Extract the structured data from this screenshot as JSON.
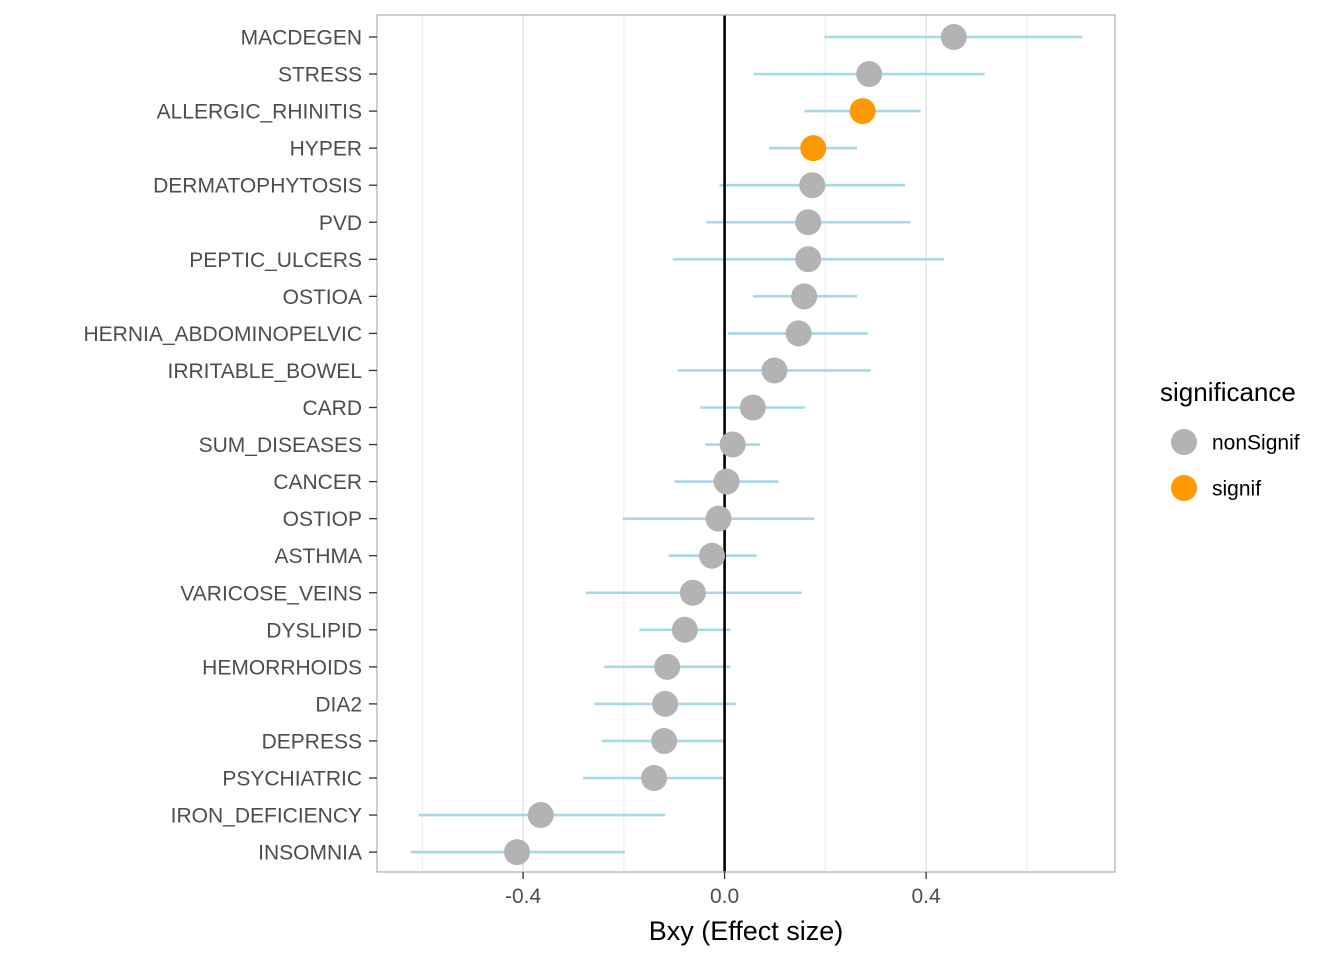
{
  "chart_data": {
    "type": "scatter",
    "subtype": "forest-plot",
    "xlabel": "Bxy (Effect size)",
    "ylabel": "",
    "xlim": [
      -0.69,
      0.775
    ],
    "xticks": [
      -0.4,
      0.0,
      0.4
    ],
    "xtick_labels": [
      "-0.4",
      "0.0",
      "0.4"
    ],
    "reference_line_x": 0,
    "grid": true,
    "legend": {
      "title": "significance",
      "position": "right",
      "entries": [
        {
          "label": "nonSignif",
          "color": "#b3b3b3"
        },
        {
          "label": "signif",
          "color": "#ff9900"
        }
      ]
    },
    "errorbar_color": "#a6d8ea",
    "points": [
      {
        "label": "MACDEGEN",
        "estimate": 0.455,
        "lower": 0.198,
        "upper": 0.71,
        "significance": "nonSignif"
      },
      {
        "label": "STRESS",
        "estimate": 0.287,
        "lower": 0.058,
        "upper": 0.516,
        "significance": "nonSignif"
      },
      {
        "label": "ALLERGIC_RHINITIS",
        "estimate": 0.274,
        "lower": 0.159,
        "upper": 0.389,
        "significance": "signif"
      },
      {
        "label": "HYPER",
        "estimate": 0.176,
        "lower": 0.088,
        "upper": 0.263,
        "significance": "signif"
      },
      {
        "label": "DERMATOPHYTOSIS",
        "estimate": 0.174,
        "lower": -0.01,
        "upper": 0.358,
        "significance": "nonSignif"
      },
      {
        "label": "PVD",
        "estimate": 0.166,
        "lower": -0.036,
        "upper": 0.369,
        "significance": "nonSignif"
      },
      {
        "label": "PEPTIC_ULCERS",
        "estimate": 0.166,
        "lower": -0.103,
        "upper": 0.436,
        "significance": "nonSignif"
      },
      {
        "label": "OSTIOA",
        "estimate": 0.158,
        "lower": 0.056,
        "upper": 0.263,
        "significance": "nonSignif"
      },
      {
        "label": "HERNIA_ABDOMINOPELVIC",
        "estimate": 0.147,
        "lower": 0.006,
        "upper": 0.285,
        "significance": "nonSignif"
      },
      {
        "label": "IRRITABLE_BOWEL",
        "estimate": 0.099,
        "lower": -0.093,
        "upper": 0.29,
        "significance": "nonSignif"
      },
      {
        "label": "CARD",
        "estimate": 0.056,
        "lower": -0.048,
        "upper": 0.159,
        "significance": "nonSignif"
      },
      {
        "label": "SUM_DISEASES",
        "estimate": 0.016,
        "lower": -0.038,
        "upper": 0.07,
        "significance": "nonSignif"
      },
      {
        "label": "CANCER",
        "estimate": 0.004,
        "lower": -0.099,
        "upper": 0.107,
        "significance": "nonSignif"
      },
      {
        "label": "OSTIOP",
        "estimate": -0.012,
        "lower": -0.202,
        "upper": 0.178,
        "significance": "nonSignif"
      },
      {
        "label": "ASTHMA",
        "estimate": -0.025,
        "lower": -0.111,
        "upper": 0.064,
        "significance": "nonSignif"
      },
      {
        "label": "VARICOSE_VEINS",
        "estimate": -0.063,
        "lower": -0.275,
        "upper": 0.153,
        "significance": "nonSignif"
      },
      {
        "label": "DYSLIPID",
        "estimate": -0.079,
        "lower": -0.169,
        "upper": 0.012,
        "significance": "nonSignif"
      },
      {
        "label": "HEMORRHOIDS",
        "estimate": -0.114,
        "lower": -0.239,
        "upper": 0.012,
        "significance": "nonSignif"
      },
      {
        "label": "DIA2",
        "estimate": -0.118,
        "lower": -0.259,
        "upper": 0.022,
        "significance": "nonSignif"
      },
      {
        "label": "DEPRESS",
        "estimate": -0.12,
        "lower": -0.244,
        "upper": 0.002,
        "significance": "nonSignif"
      },
      {
        "label": "PSYCHIATRIC",
        "estimate": -0.14,
        "lower": -0.281,
        "upper": 0.002,
        "significance": "nonSignif"
      },
      {
        "label": "IRON_DEFICIENCY",
        "estimate": -0.365,
        "lower": -0.607,
        "upper": -0.118,
        "significance": "nonSignif"
      },
      {
        "label": "INSOMNIA",
        "estimate": -0.412,
        "lower": -0.623,
        "upper": -0.198,
        "significance": "nonSignif"
      }
    ]
  }
}
